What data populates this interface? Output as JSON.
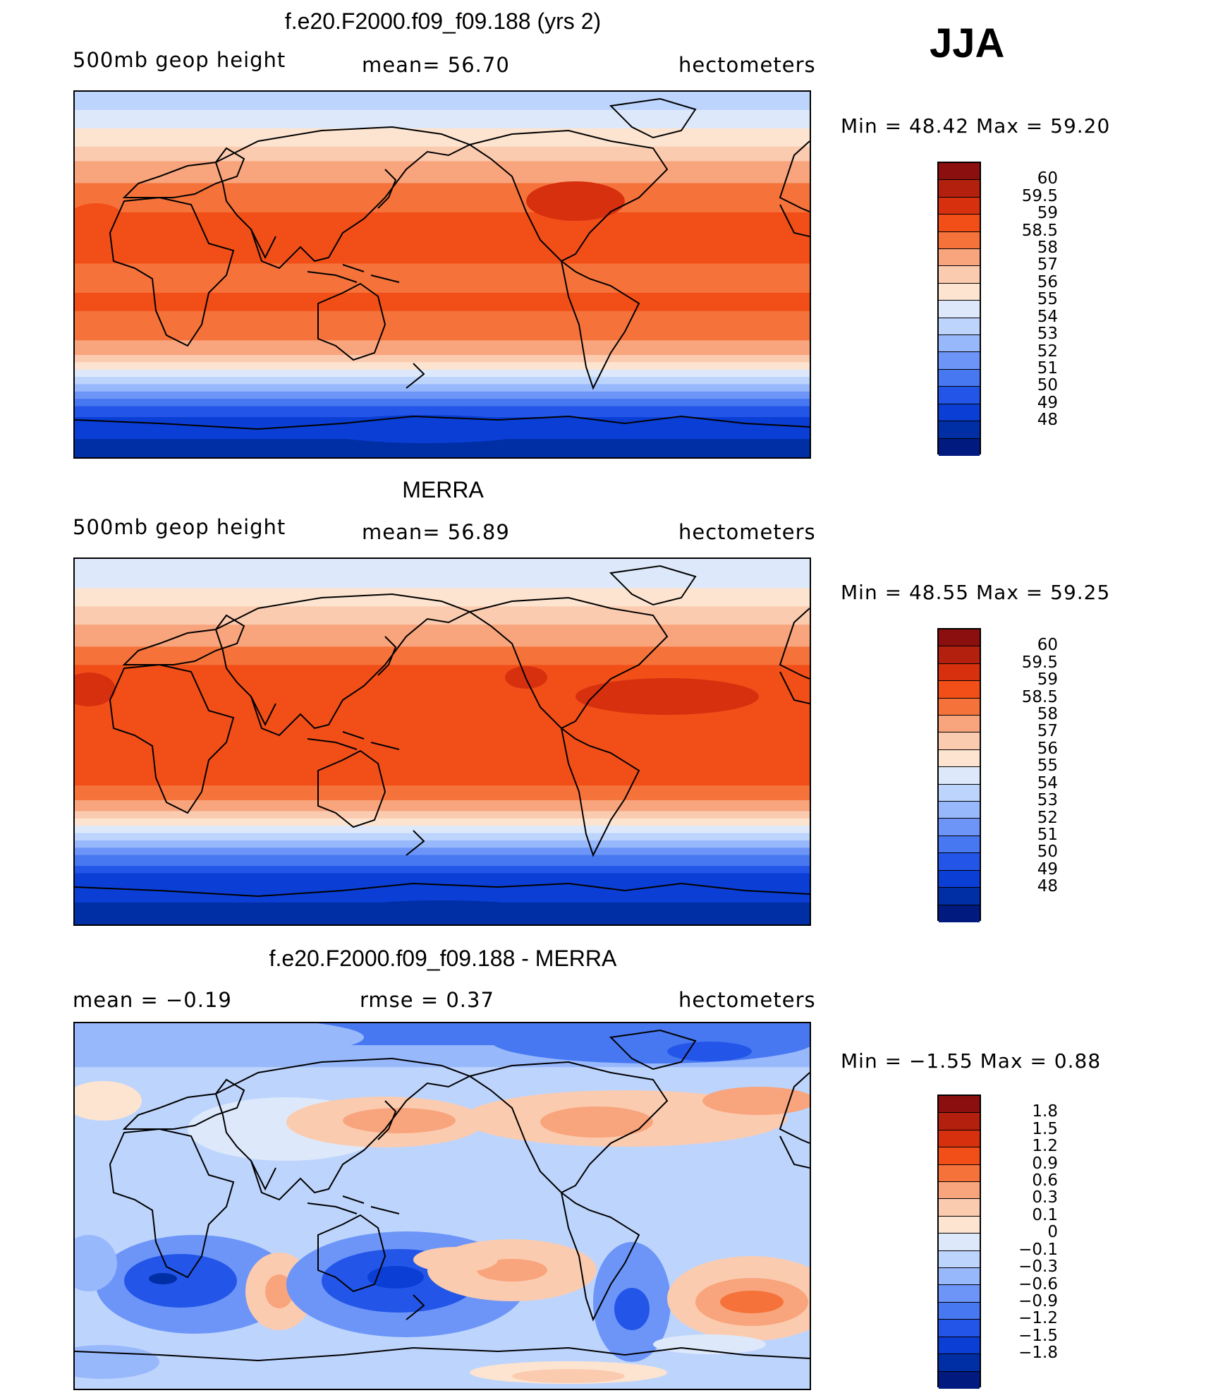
{
  "season": "JJA",
  "panels": [
    {
      "title": "f.e20.F2000.f09_f09.188 (yrs 2)",
      "left_label": "500mb  geop  height",
      "center_label": "mean=   56.70",
      "right_label": "hectometers",
      "minmax": "Min  =    48.42  Max  =    59.20",
      "colorbar_labels": [
        "60",
        "59.5",
        "59",
        "58.5",
        "58",
        "57",
        "56",
        "55",
        "54",
        "53",
        "52",
        "51",
        "50",
        "49",
        "48"
      ],
      "colorbar_colors": [
        "#8b0f0f",
        "#b3200e",
        "#d7300f",
        "#f24f18",
        "#f5733b",
        "#f8a47c",
        "#fbcbb0",
        "#fde4d0",
        "#dde9fb",
        "#bdd4fd",
        "#98b8fc",
        "#6c95f7",
        "#4778f2",
        "#2356e8",
        "#0a3ed5",
        "#002ea5",
        "#001a80"
      ],
      "bands": [
        [
          0.0,
          "#bdd4fd"
        ],
        [
          0.05,
          "#dde9fb"
        ],
        [
          0.1,
          "#fde4d0"
        ],
        [
          0.15,
          "#fbcbb0"
        ],
        [
          0.19,
          "#f8a47c"
        ],
        [
          0.25,
          "#f5733b"
        ],
        [
          0.33,
          "#f24f18"
        ],
        [
          0.47,
          "#f5733b"
        ],
        [
          0.55,
          "#f24f18"
        ],
        [
          0.6,
          "#f5733b"
        ],
        [
          0.68,
          "#f8a47c"
        ],
        [
          0.72,
          "#fbcbb0"
        ],
        [
          0.74,
          "#fde4d0"
        ],
        [
          0.76,
          "#dde9fb"
        ],
        [
          0.78,
          "#bdd4fd"
        ],
        [
          0.8,
          "#98b8fc"
        ],
        [
          0.82,
          "#6c95f7"
        ],
        [
          0.84,
          "#4778f2"
        ],
        [
          0.86,
          "#2356e8"
        ],
        [
          0.89,
          "#0a3ed5"
        ],
        [
          0.95,
          "#002ea5"
        ]
      ]
    },
    {
      "title": "MERRA",
      "left_label": "500mb  geop  height",
      "center_label": "mean=   56.89",
      "right_label": "hectometers",
      "minmax": "Min  =    48.55  Max  =    59.25",
      "colorbar_labels": [
        "60",
        "59.5",
        "59",
        "58.5",
        "58",
        "57",
        "56",
        "55",
        "54",
        "53",
        "52",
        "51",
        "50",
        "49",
        "48"
      ],
      "colorbar_colors": [
        "#8b0f0f",
        "#b3200e",
        "#d7300f",
        "#f24f18",
        "#f5733b",
        "#f8a47c",
        "#fbcbb0",
        "#fde4d0",
        "#dde9fb",
        "#bdd4fd",
        "#98b8fc",
        "#6c95f7",
        "#4778f2",
        "#2356e8",
        "#0a3ed5",
        "#002ea5",
        "#001a80"
      ],
      "bands": [
        [
          0.0,
          "#dde9fb"
        ],
        [
          0.08,
          "#fde4d0"
        ],
        [
          0.13,
          "#fbcbb0"
        ],
        [
          0.18,
          "#f8a47c"
        ],
        [
          0.24,
          "#f5733b"
        ],
        [
          0.29,
          "#f24f18"
        ],
        [
          0.62,
          "#f5733b"
        ],
        [
          0.66,
          "#f8a47c"
        ],
        [
          0.69,
          "#fbcbb0"
        ],
        [
          0.71,
          "#fde4d0"
        ],
        [
          0.73,
          "#dde9fb"
        ],
        [
          0.75,
          "#bdd4fd"
        ],
        [
          0.77,
          "#98b8fc"
        ],
        [
          0.79,
          "#6c95f7"
        ],
        [
          0.81,
          "#4778f2"
        ],
        [
          0.84,
          "#2356e8"
        ],
        [
          0.86,
          "#0a3ed5"
        ],
        [
          0.94,
          "#002ea5"
        ]
      ]
    },
    {
      "title": "f.e20.F2000.f09_f09.188 - MERRA",
      "left_label": "mean  =    −0.19",
      "center_label": "rmse  =     0.37",
      "right_label": "hectometers",
      "minmax": "Min  =   −1.55  Max  =      0.88",
      "colorbar_labels": [
        "1.8",
        "1.5",
        "1.2",
        "0.9",
        "0.6",
        "0.3",
        "0.1",
        "0",
        "−0.1",
        "−0.3",
        "−0.6",
        "−0.9",
        "−1.2",
        "−1.5",
        "−1.8"
      ],
      "colorbar_colors": [
        "#8b0f0f",
        "#b3200e",
        "#d7300f",
        "#f24f18",
        "#f5733b",
        "#f8a47c",
        "#fbcbb0",
        "#fde4d0",
        "#dde9fb",
        "#bdd4fd",
        "#98b8fc",
        "#6c95f7",
        "#4778f2",
        "#2356e8",
        "#0a3ed5",
        "#002ea5",
        "#001a80"
      ],
      "bands": [
        [
          0.0,
          "#4778f2"
        ],
        [
          0.06,
          "#98b8fc"
        ],
        [
          0.12,
          "#bdd4fd"
        ]
      ]
    }
  ]
}
